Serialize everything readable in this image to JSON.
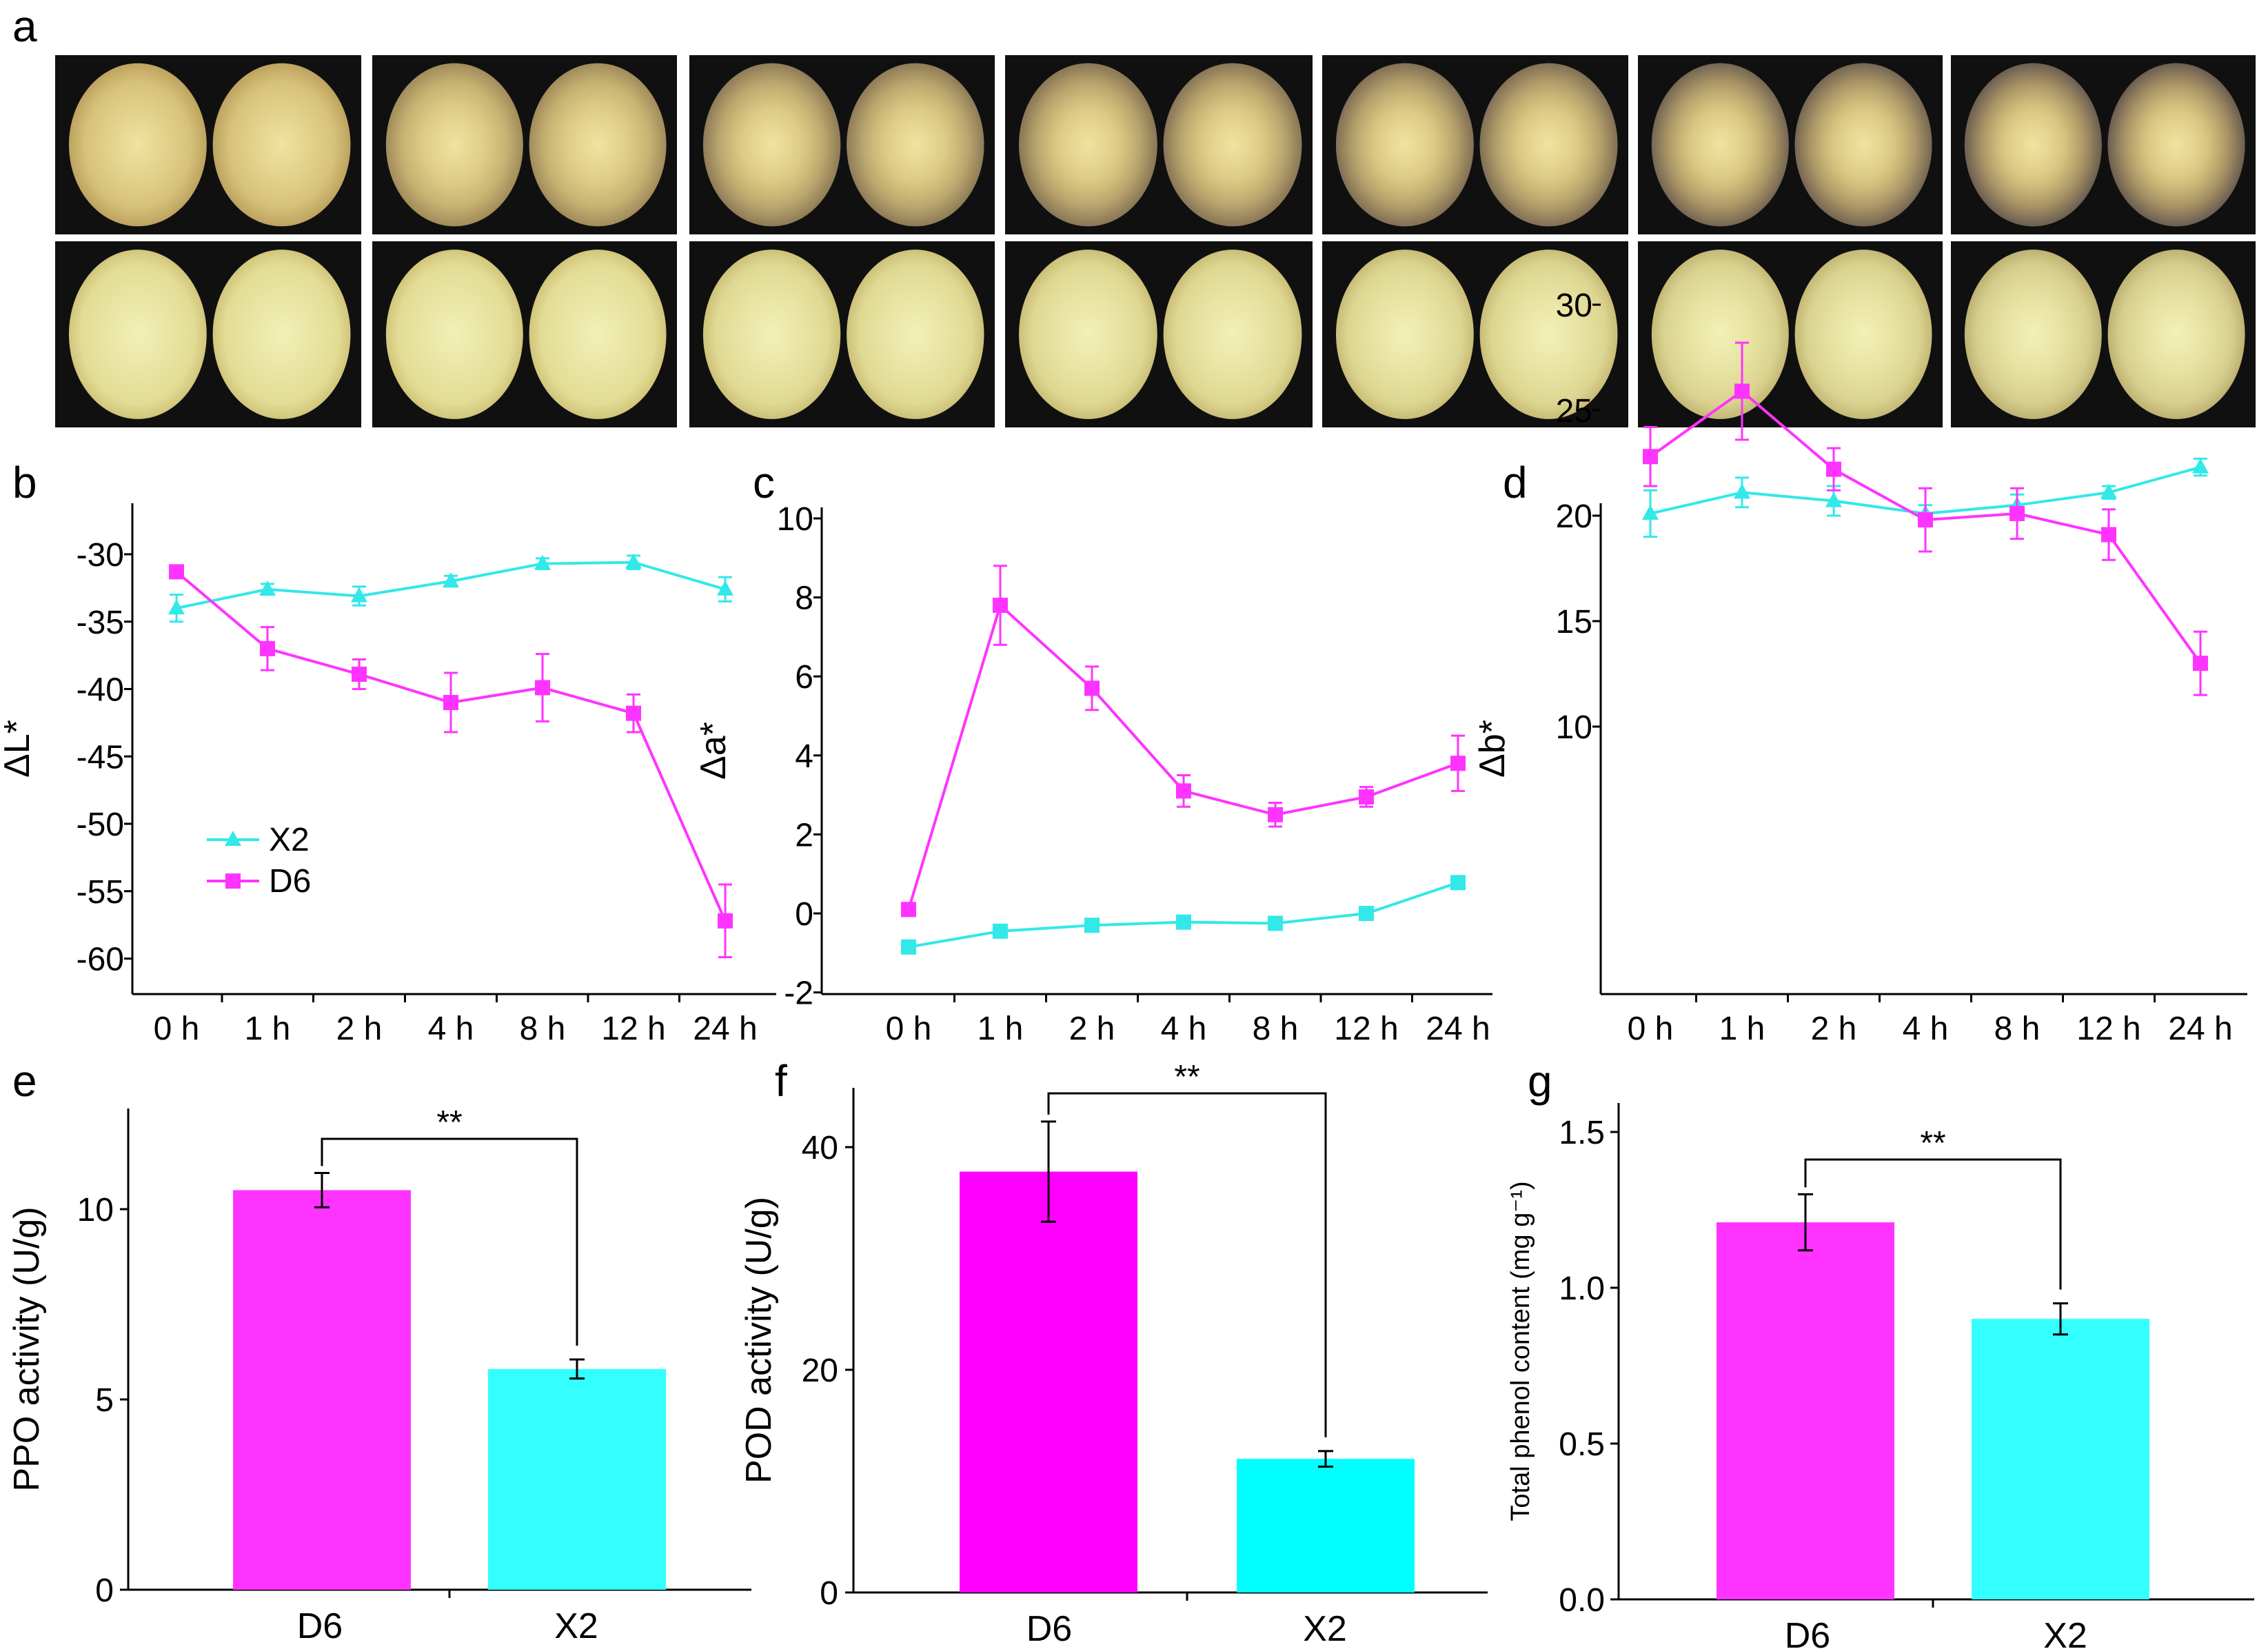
{
  "photo_panel": {
    "label": "a",
    "time_points": [
      "0 h",
      "1 h",
      "2 h",
      "4 h",
      "8 h",
      "12 h",
      "24 h"
    ],
    "rows": [
      {
        "browning": [
          0.05,
          0.35,
          0.55,
          0.62,
          0.7,
          0.82,
          0.92
        ]
      },
      {
        "browning": [
          0.0,
          0.0,
          0.04,
          0.06,
          0.08,
          0.12,
          0.18
        ]
      }
    ]
  },
  "chart_data": [
    {
      "panel": "b",
      "type": "line",
      "x": [
        "0 h",
        "1 h",
        "2 h",
        "4 h",
        "8 h",
        "12 h",
        "24 h"
      ],
      "ylabel": "ΔL*",
      "ylim": [
        -63,
        -28
      ],
      "yticks": [
        -30,
        -35,
        -40,
        -45,
        -50,
        -55,
        -60
      ],
      "legend": "inside-left",
      "series": [
        {
          "name": "X2",
          "color": "#33e8e8",
          "marker": "triangle",
          "values": [
            -34.0,
            -32.6,
            -33.1,
            -32.0,
            -30.7,
            -30.6,
            -32.6
          ],
          "errors": [
            1.0,
            0.4,
            0.7,
            0.4,
            0.4,
            0.5,
            0.9
          ]
        },
        {
          "name": "D6",
          "color": "#ff33ff",
          "marker": "square",
          "values": [
            -31.3,
            -37.0,
            -38.9,
            -41.0,
            -39.9,
            -41.8,
            -57.2
          ],
          "errors": [
            0.4,
            1.6,
            1.1,
            2.2,
            2.5,
            1.4,
            2.7
          ]
        }
      ]
    },
    {
      "panel": "c",
      "type": "line",
      "x": [
        "0 h",
        "1 h",
        "2 h",
        "4 h",
        "8 h",
        "12 h",
        "24 h"
      ],
      "ylabel": "Δa*",
      "ylim": [
        -2,
        10
      ],
      "yticks": [
        -2,
        0,
        2,
        4,
        6,
        8,
        10
      ],
      "series": [
        {
          "name": "X2",
          "color": "#33e8e8",
          "marker": "square",
          "values": [
            -0.85,
            -0.45,
            -0.3,
            -0.22,
            -0.25,
            0.0,
            0.78
          ],
          "errors": [
            0.0,
            0.0,
            0.0,
            0.0,
            0.0,
            0.0,
            0.0
          ]
        },
        {
          "name": "D6",
          "color": "#ff33ff",
          "marker": "square",
          "values": [
            0.1,
            7.8,
            5.7,
            3.1,
            2.5,
            2.95,
            3.8
          ],
          "errors": [
            0.0,
            1.0,
            0.55,
            0.4,
            0.3,
            0.25,
            0.7
          ]
        }
      ]
    },
    {
      "panel": "d",
      "type": "line",
      "x": [
        "0 h",
        "1 h",
        "2 h",
        "4 h",
        "8 h",
        "12 h",
        "24 h"
      ],
      "ylabel": "Δb*",
      "ylim": [
        8,
        30
      ],
      "yticks": [
        10,
        15,
        20,
        25,
        30
      ],
      "series": [
        {
          "name": "X2",
          "color": "#33e8e8",
          "marker": "triangle",
          "values": [
            20.1,
            21.1,
            20.7,
            20.1,
            20.5,
            21.1,
            22.3
          ],
          "errors": [
            1.1,
            0.7,
            0.7,
            0.4,
            0.5,
            0.3,
            0.4
          ]
        },
        {
          "name": "D6",
          "color": "#ff33ff",
          "marker": "square",
          "values": [
            22.8,
            25.9,
            22.2,
            19.8,
            20.1,
            19.1,
            13.0
          ],
          "errors": [
            1.4,
            2.3,
            1.0,
            1.5,
            1.2,
            1.2,
            1.5
          ]
        }
      ]
    },
    {
      "panel": "e",
      "type": "bar",
      "categories": [
        "D6",
        "X2"
      ],
      "values": [
        10.5,
        5.8
      ],
      "errors": [
        0.45,
        0.25
      ],
      "colors": [
        "#ff33ff",
        "#33ffff"
      ],
      "ylabel": "PPO activity (U/g)",
      "ylim": [
        0,
        12.5
      ],
      "yticks": [
        0,
        5,
        10
      ],
      "significance": "**"
    },
    {
      "panel": "f",
      "type": "bar",
      "categories": [
        "D6",
        "X2"
      ],
      "values": [
        37.8,
        12.0
      ],
      "errors": [
        4.5,
        0.7
      ],
      "colors": [
        "#ff00ff",
        "#00ffff"
      ],
      "ylabel": "POD activity (U/g)",
      "ylim": [
        0,
        45
      ],
      "yticks": [
        0,
        20,
        40
      ],
      "significance": "**"
    },
    {
      "panel": "g",
      "type": "bar",
      "categories": [
        "D6",
        "X2"
      ],
      "values": [
        1.21,
        0.9
      ],
      "errors": [
        0.09,
        0.05
      ],
      "colors": [
        "#ff33ff",
        "#33ffff"
      ],
      "ylabel": "Total phenol content (mg g⁻¹)",
      "ylim": [
        0,
        1.5
      ],
      "yticks": [
        "0.0",
        "0.5",
        "1.0",
        "1.5"
      ],
      "significance": "**"
    }
  ]
}
